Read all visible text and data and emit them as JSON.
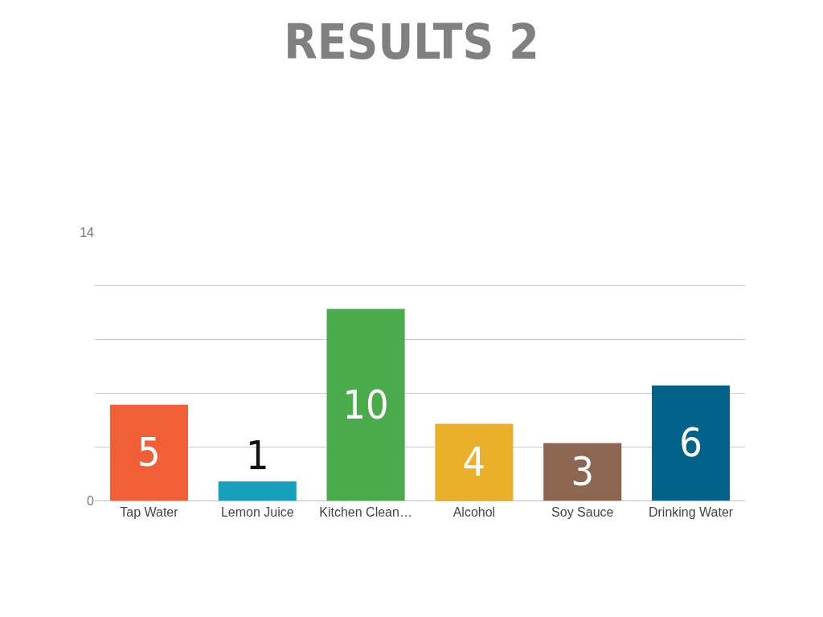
{
  "chart_data": {
    "type": "bar",
    "title": "RESULTS 2",
    "categories": [
      "Tap Water",
      "Lemon Juice",
      "Kitchen Clean…",
      "Alcohol",
      "Soy Sauce",
      "Drinking Water"
    ],
    "values": [
      5,
      1,
      10,
      4,
      3,
      6
    ],
    "colors": [
      "#f05f35",
      "#159fbd",
      "#4aab4b",
      "#ebb02a",
      "#8c6651",
      "#02628a"
    ],
    "ylim": [
      0,
      14
    ],
    "yticks": [
      0,
      {
        "value": 2.8,
        "label": null
      },
      {
        "value": 5.6,
        "label": null
      },
      {
        "value": 8.4,
        "label": null
      },
      {
        "value": 11.2,
        "label": null
      },
      14
    ],
    "grid": "y",
    "data_labels": true
  }
}
